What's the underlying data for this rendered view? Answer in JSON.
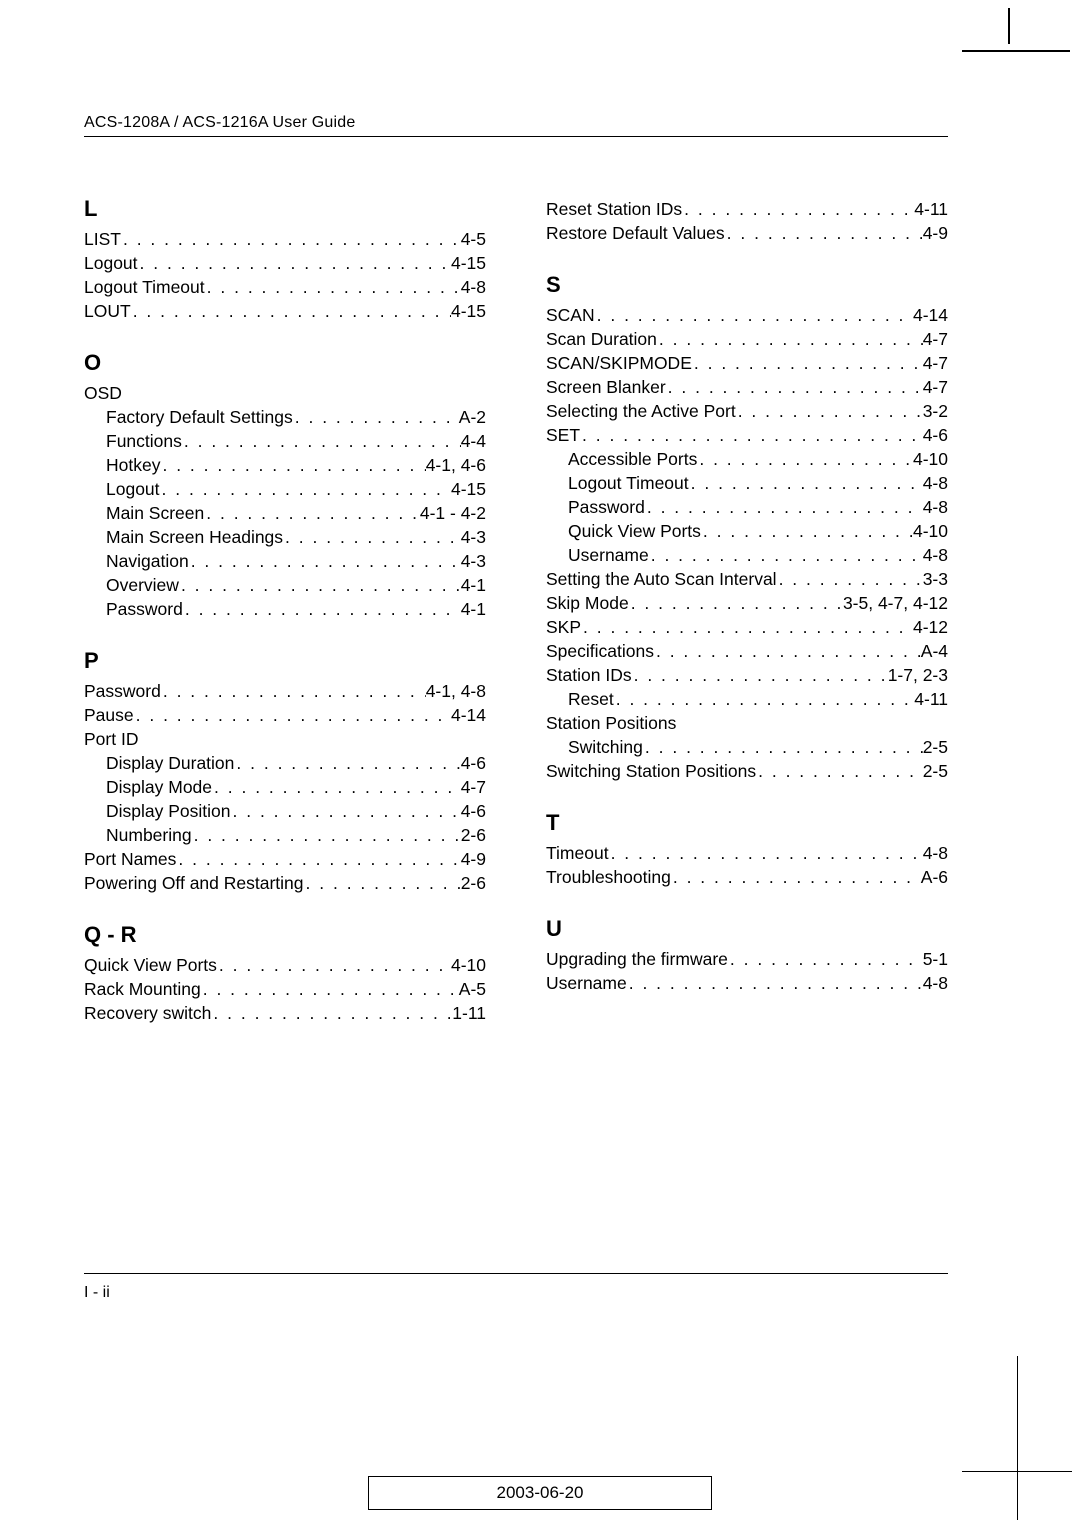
{
  "header": {
    "title": "ACS-1208A / ACS-1216A User Guide"
  },
  "footer": {
    "page_ref": "I - ii",
    "date": "2003-06-20"
  },
  "left_column": [
    {
      "type": "letter",
      "text": "L",
      "first": true
    },
    {
      "type": "entry",
      "label": "LIST",
      "page": "4-5"
    },
    {
      "type": "entry",
      "label": "Logout",
      "page": "4-15"
    },
    {
      "type": "entry",
      "label": "Logout Timeout",
      "page": "4-8"
    },
    {
      "type": "entry",
      "label": "LOUT",
      "page": "4-15"
    },
    {
      "type": "letter",
      "text": "O"
    },
    {
      "type": "plain",
      "label": "OSD"
    },
    {
      "type": "entry",
      "label": "Factory Default Settings",
      "page": "A-2",
      "sub": true
    },
    {
      "type": "entry",
      "label": "Functions",
      "page": "4-4",
      "sub": true
    },
    {
      "type": "entry",
      "label": "Hotkey",
      "page": "4-1, 4-6",
      "sub": true
    },
    {
      "type": "entry",
      "label": "Logout",
      "page": "4-15",
      "sub": true
    },
    {
      "type": "entry",
      "label": "Main Screen",
      "page": "4-1 - 4-2",
      "sub": true
    },
    {
      "type": "entry",
      "label": "Main Screen Headings",
      "page": "4-3",
      "sub": true
    },
    {
      "type": "entry",
      "label": "Navigation",
      "page": "4-3",
      "sub": true
    },
    {
      "type": "entry",
      "label": "Overview",
      "page": "4-1",
      "sub": true
    },
    {
      "type": "entry",
      "label": "Password",
      "page": "4-1",
      "sub": true
    },
    {
      "type": "letter",
      "text": "P"
    },
    {
      "type": "entry",
      "label": "Password",
      "page": "4-1, 4-8"
    },
    {
      "type": "entry",
      "label": "Pause",
      "page": "4-14"
    },
    {
      "type": "plain",
      "label": "Port ID"
    },
    {
      "type": "entry",
      "label": "Display Duration",
      "page": "4-6",
      "sub": true
    },
    {
      "type": "entry",
      "label": "Display Mode",
      "page": "4-7",
      "sub": true
    },
    {
      "type": "entry",
      "label": "Display Position",
      "page": "4-6",
      "sub": true
    },
    {
      "type": "entry",
      "label": "Numbering",
      "page": "2-6",
      "sub": true
    },
    {
      "type": "entry",
      "label": "Port Names",
      "page": "4-9"
    },
    {
      "type": "entry",
      "label": "Powering Off and Restarting",
      "page": "2-6"
    },
    {
      "type": "letter",
      "text": "Q - R"
    },
    {
      "type": "entry",
      "label": "Quick View Ports",
      "page": "4-10"
    },
    {
      "type": "entry",
      "label": "Rack Mounting",
      "page": "A-5"
    },
    {
      "type": "entry",
      "label": "Recovery switch",
      "page": "1-11"
    }
  ],
  "right_column": [
    {
      "type": "entry",
      "label": "Reset Station IDs",
      "page": "4-11"
    },
    {
      "type": "entry",
      "label": "Restore Default Values",
      "page": "4-9"
    },
    {
      "type": "letter",
      "text": "S"
    },
    {
      "type": "entry",
      "label": "SCAN",
      "page": "4-14"
    },
    {
      "type": "entry",
      "label": "Scan Duration",
      "page": "4-7"
    },
    {
      "type": "entry",
      "label": "SCAN/SKIPMODE",
      "page": "4-7"
    },
    {
      "type": "entry",
      "label": "Screen Blanker",
      "page": "4-7"
    },
    {
      "type": "entry",
      "label": "Selecting the Active Port",
      "page": "3-2"
    },
    {
      "type": "entry",
      "label": "SET",
      "page": "4-6"
    },
    {
      "type": "entry",
      "label": "Accessible Ports",
      "page": "4-10",
      "sub": true
    },
    {
      "type": "entry",
      "label": "Logout Timeout",
      "page": "4-8",
      "sub": true
    },
    {
      "type": "entry",
      "label": "Password",
      "page": "4-8",
      "sub": true
    },
    {
      "type": "entry",
      "label": "Quick View Ports",
      "page": "4-10",
      "sub": true
    },
    {
      "type": "entry",
      "label": "Username",
      "page": "4-8",
      "sub": true
    },
    {
      "type": "entry",
      "label": "Setting the Auto Scan Interval",
      "page": "3-3"
    },
    {
      "type": "entry",
      "label": "Skip Mode",
      "page": "3-5, 4-7, 4-12"
    },
    {
      "type": "entry",
      "label": "SKP",
      "page": "4-12"
    },
    {
      "type": "entry",
      "label": "Specifications",
      "page": "A-4"
    },
    {
      "type": "entry",
      "label": "Station IDs",
      "page": "1-7, 2-3"
    },
    {
      "type": "entry",
      "label": "Reset",
      "page": "4-11",
      "sub": true
    },
    {
      "type": "plain",
      "label": "Station Positions"
    },
    {
      "type": "entry",
      "label": "Switching",
      "page": "2-5",
      "sub": true
    },
    {
      "type": "entry",
      "label": "Switching Station Positions",
      "page": "2-5"
    },
    {
      "type": "letter",
      "text": "T"
    },
    {
      "type": "entry",
      "label": "Timeout",
      "page": "4-8"
    },
    {
      "type": "entry",
      "label": "Troubleshooting",
      "page": "A-6"
    },
    {
      "type": "letter",
      "text": "U"
    },
    {
      "type": "entry",
      "label": "Upgrading the firmware",
      "page": "5-1"
    },
    {
      "type": "entry",
      "label": "Username",
      "page": "4-8"
    }
  ]
}
